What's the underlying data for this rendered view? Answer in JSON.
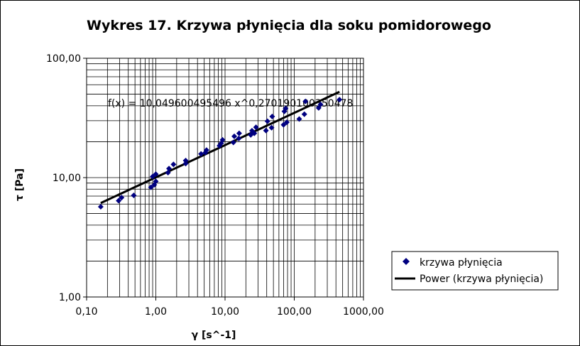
{
  "chart_data": {
    "type": "scatter",
    "title": "Wykres 17. Krzywa płynięcia dla soku pomidorowego",
    "xlabel": "γ [s^-1]",
    "ylabel": "τ [Pa]",
    "x_scale": "log",
    "y_scale": "log",
    "xlim": [
      0.1,
      1000
    ],
    "ylim": [
      1,
      100
    ],
    "x_ticks": [
      "0,10",
      "1,00",
      "10,00",
      "100,00",
      "1000,00"
    ],
    "y_ticks": [
      "1,00",
      "10,00",
      "100,00"
    ],
    "grid": true,
    "legend_position": "right",
    "series": [
      {
        "name": "krzywa płynięcia",
        "marker": "diamond",
        "color": "#000080",
        "points": [
          [
            0.16,
            5.7
          ],
          [
            0.29,
            6.4
          ],
          [
            0.32,
            6.8
          ],
          [
            0.48,
            7.1
          ],
          [
            0.85,
            8.3
          ],
          [
            0.9,
            10.2
          ],
          [
            0.95,
            8.7
          ],
          [
            1.0,
            10.7
          ],
          [
            1.0,
            9.3
          ],
          [
            1.5,
            11.0
          ],
          [
            1.55,
            11.9
          ],
          [
            1.8,
            12.9
          ],
          [
            2.7,
            13.1
          ],
          [
            2.7,
            13.9
          ],
          [
            4.5,
            15.8
          ],
          [
            5.2,
            16.2
          ],
          [
            5.4,
            17.0
          ],
          [
            8.3,
            18.5
          ],
          [
            8.8,
            19.4
          ],
          [
            9.2,
            20.7
          ],
          [
            13.2,
            19.7
          ],
          [
            13.6,
            22.2
          ],
          [
            15.8,
            21.3
          ],
          [
            16.0,
            23.5
          ],
          [
            23.5,
            22.8
          ],
          [
            24.5,
            24.7
          ],
          [
            26.5,
            23.5
          ],
          [
            28.0,
            26.4
          ],
          [
            39.0,
            24.8
          ],
          [
            41.0,
            29.7
          ],
          [
            47.0,
            26.2
          ],
          [
            48.0,
            32.5
          ],
          [
            70.0,
            27.7
          ],
          [
            72.0,
            35.9
          ],
          [
            75.0,
            38.0
          ],
          [
            78.0,
            29.1
          ],
          [
            118.0,
            31.0
          ],
          [
            140.0,
            34.0
          ],
          [
            145.0,
            43.5
          ],
          [
            225.0,
            38.4
          ],
          [
            240.0,
            41.0
          ],
          [
            450.0,
            45.0
          ]
        ]
      },
      {
        "name": "Power (krzywa płynięcia)",
        "type": "line",
        "color": "#000000",
        "coefficient": 10.049600495496,
        "exponent": 0.270190100350478,
        "x_range": [
          0.16,
          450
        ]
      }
    ],
    "annotations": [
      "f(x) = 10,049600495496 x^0,270190100350478"
    ]
  }
}
